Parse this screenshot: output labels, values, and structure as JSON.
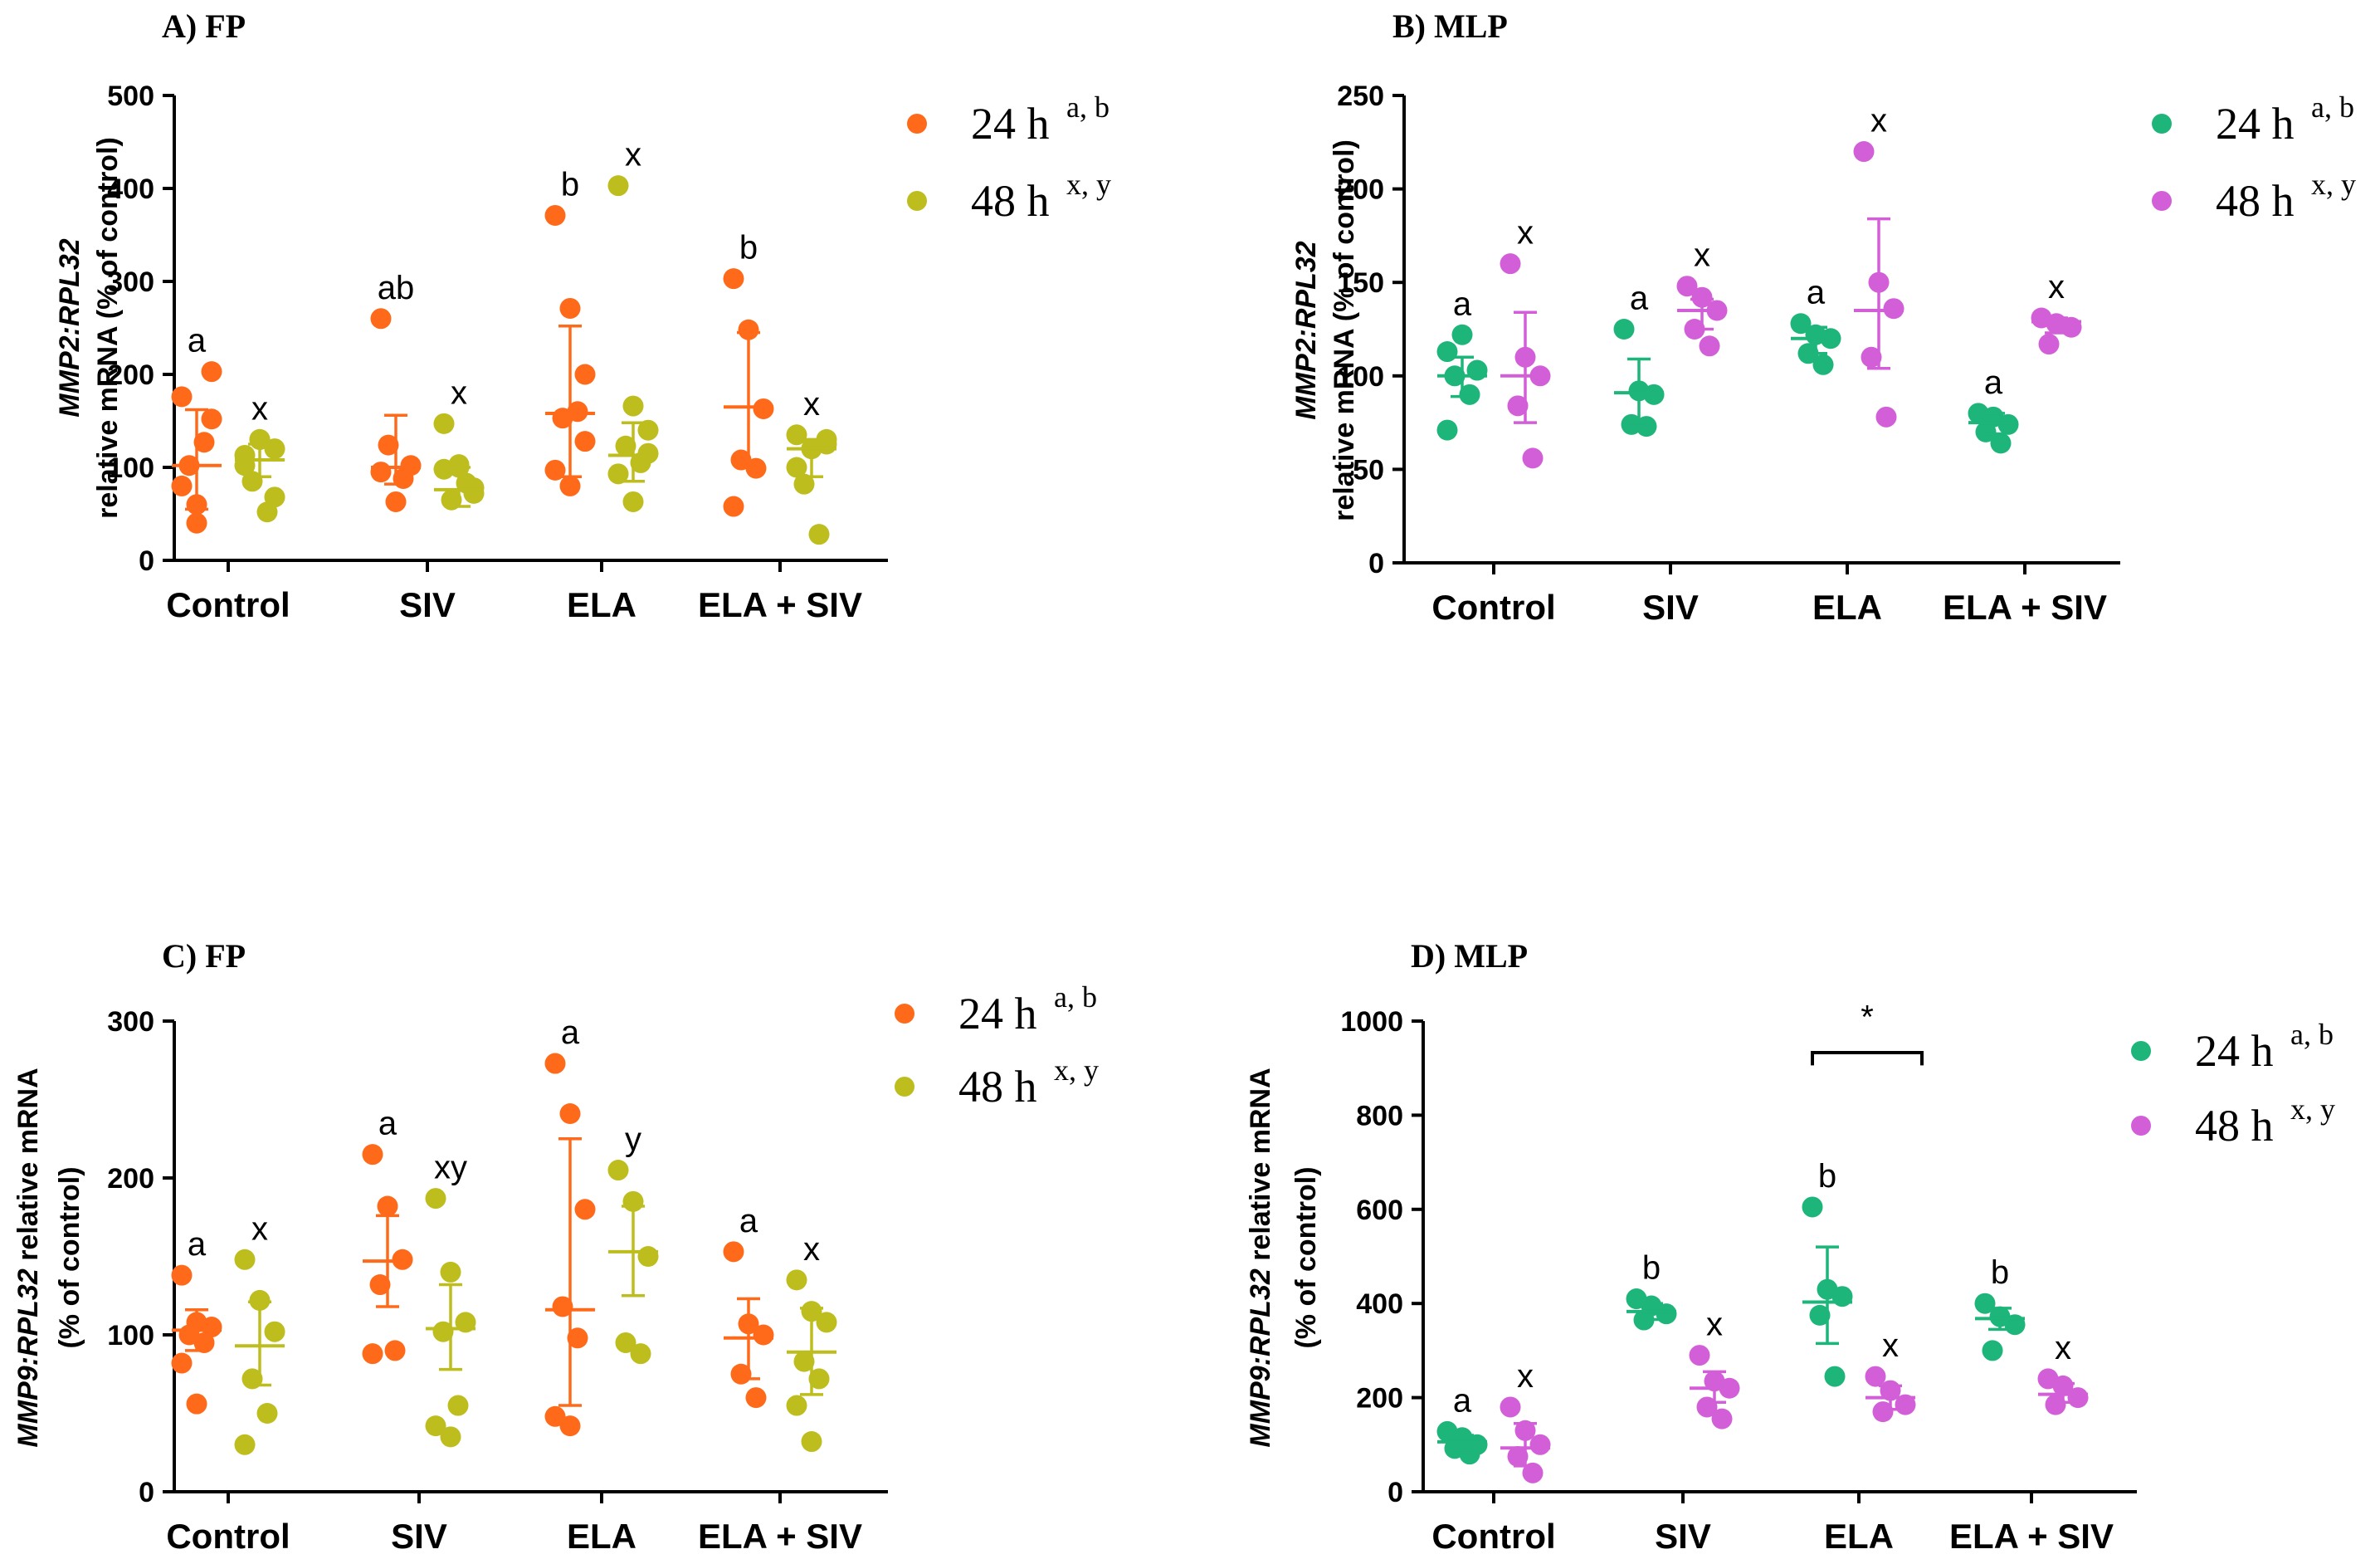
{
  "chart_data": [
    {
      "id": "A",
      "type": "scatter",
      "title": "A) FP",
      "ylabel_gene": "MMP2:RPL32",
      "ylabel_rest": "relative mRNA (% of control)",
      "ylim": [
        0,
        500
      ],
      "yticks": [
        "0",
        "100",
        "200",
        "300",
        "400",
        "500"
      ],
      "categories": [
        "Control",
        "SIV",
        "ELA",
        "ELA + SIV"
      ],
      "series": [
        {
          "name": "24 h",
          "sup": "a, b",
          "color": "#ff6a1a",
          "points": [
            [
              176,
              60,
              152,
              102,
              127,
              80,
              40,
              203
            ],
            [
              260,
              63,
              102,
              124,
              88,
              95
            ],
            [
              371,
              271,
              200,
              153,
              160,
              97,
              80,
              128
            ],
            [
              303,
              248,
              163,
              108,
              99,
              58
            ]
          ],
          "mean": [
            102,
            100,
            158,
            165
          ],
          "upper": [
            162,
            156,
            252,
            245
          ],
          "lower": [
            55,
            82,
            90,
            100
          ],
          "letters": [
            "a",
            "ab",
            "b",
            "b"
          ]
        },
        {
          "name": "48 h",
          "sup": "x, y",
          "color": "#bdbd1e",
          "points": [
            [
              102,
              130,
              120,
              85,
              52,
              113,
              130,
              68
            ],
            [
              147,
              103,
              72,
              65,
              83,
              98,
              100,
              78
            ],
            [
              403,
              166,
              140,
              123,
              105,
              93,
              63,
              115
            ],
            [
              135,
              120,
              125,
              82,
              28,
              100,
              120,
              130
            ]
          ],
          "mean": [
            108,
            76,
            113,
            120
          ],
          "upper": [
            125,
            100,
            148,
            130
          ],
          "lower": [
            90,
            58,
            85,
            90
          ],
          "letters": [
            "x",
            "x",
            "x",
            "x"
          ]
        }
      ]
    },
    {
      "id": "B",
      "type": "scatter",
      "title": "B) MLP",
      "ylabel_gene": "MMP2:RPL32",
      "ylabel_rest": "relative mRNA (% of control)",
      "ylim": [
        0,
        250
      ],
      "yticks": [
        "0",
        "50",
        "100",
        "150",
        "200",
        "250"
      ],
      "categories": [
        "Control",
        "SIV",
        "ELA",
        "ELA + SIV"
      ],
      "series": [
        {
          "name": "24 h",
          "sup": "a, b",
          "color": "#1db57a",
          "points": [
            [
              113,
              122,
              103,
              100,
              90,
              71
            ],
            [
              125,
              92,
              90,
              74,
              73
            ],
            [
              128,
              122,
              120,
              112,
              106
            ],
            [
              80,
              78,
              74,
              70,
              64
            ]
          ],
          "mean": [
            100,
            91,
            120,
            75
          ],
          "upper": [
            110,
            109,
            126,
            80
          ],
          "lower": [
            89,
            73,
            112,
            69
          ],
          "letters": [
            "a",
            "a",
            "a",
            "a"
          ]
        },
        {
          "name": "48 h",
          "sup": "x, y",
          "color": "#d35fd8",
          "points": [
            [
              160,
              110,
              100,
              84,
              56
            ],
            [
              148,
              142,
              135,
              125,
              116
            ],
            [
              220,
              150,
              136,
              110,
              78
            ],
            [
              131,
              128,
              126,
              117
            ]
          ],
          "mean": [
            100,
            135,
            135,
            129
          ],
          "upper": [
            134,
            141,
            184,
            131
          ],
          "lower": [
            75,
            125,
            104,
            123
          ],
          "letters": [
            "x",
            "x",
            "x",
            "x"
          ]
        }
      ]
    },
    {
      "id": "C",
      "type": "scatter",
      "title": "C) FP",
      "ylabel_gene": "MMP9:RPL32",
      "ylabel_gene_suffix": " relative mRNA",
      "ylabel_rest": "(% of control)",
      "ylim": [
        0,
        300
      ],
      "yticks": [
        "0",
        "100",
        "200",
        "300"
      ],
      "categories": [
        "Control",
        "SIV",
        "ELA",
        "ELA + SIV"
      ],
      "series": [
        {
          "name": "24 h",
          "sup": "a, b",
          "color": "#ff6a1a",
          "points": [
            [
              138,
              108,
              105,
              100,
              95,
              82,
              56
            ],
            [
              215,
              182,
              148,
              132,
              90,
              88
            ],
            [
              273,
              241,
              180,
              118,
              98,
              48,
              42
            ],
            [
              153,
              107,
              100,
              75,
              60
            ]
          ],
          "mean": [
            103,
            147,
            116,
            98
          ],
          "upper": [
            116,
            176,
            225,
            123
          ],
          "lower": [
            90,
            118,
            55,
            72
          ],
          "letters": [
            "a",
            "a",
            "a",
            "a"
          ]
        },
        {
          "name": "48 h",
          "sup": "x, y",
          "color": "#bdbd1e",
          "points": [
            [
              148,
              122,
              102,
              72,
              50,
              30
            ],
            [
              187,
              140,
              108,
              102,
              55,
              42,
              35
            ],
            [
              205,
              185,
              150,
              95,
              88
            ],
            [
              135,
              115,
              108,
              83,
              72,
              55,
              32
            ]
          ],
          "mean": [
            93,
            104,
            153,
            89
          ],
          "upper": [
            121,
            132,
            182,
            117
          ],
          "lower": [
            68,
            78,
            125,
            62
          ],
          "letters": [
            "x",
            "xy",
            "y",
            "x"
          ]
        }
      ]
    },
    {
      "id": "D",
      "type": "scatter",
      "title": "D) MLP",
      "ylabel_gene": "MMP9:RPL32",
      "ylabel_gene_suffix": " relative mRNA",
      "ylabel_rest": "(% of control)",
      "ylim": [
        0,
        1000
      ],
      "yticks": [
        "0",
        "200",
        "400",
        "600",
        "800",
        "1000"
      ],
      "categories": [
        "Control",
        "SIV",
        "ELA",
        "ELA + SIV"
      ],
      "significance": {
        "category": "ELA",
        "label": "*"
      },
      "series": [
        {
          "name": "24 h",
          "sup": "a, b",
          "color": "#1db57a",
          "points": [
            [
              128,
              115,
              100,
              92,
              80
            ],
            [
              410,
              395,
              378,
              365
            ],
            [
              605,
              430,
              415,
              375,
              245
            ],
            [
              400,
              372,
              355,
              300
            ]
          ],
          "mean": [
            106,
            383,
            403,
            368
          ],
          "upper": [
            120,
            400,
            520,
            390
          ],
          "lower": [
            88,
            366,
            315,
            345
          ],
          "letters": [
            "a",
            "b",
            "b",
            "b"
          ]
        },
        {
          "name": "48 h",
          "sup": "x, y",
          "color": "#d35fd8",
          "points": [
            [
              180,
              130,
              100,
              75,
              40
            ],
            [
              290,
              235,
              220,
              180,
              155
            ],
            [
              245,
              215,
              185,
              170
            ],
            [
              240,
              225,
              200,
              185
            ]
          ],
          "mean": [
            93,
            220,
            200,
            207
          ],
          "upper": [
            145,
            255,
            225,
            230
          ],
          "lower": [
            55,
            190,
            175,
            190
          ],
          "letters": [
            "x",
            "x",
            "x",
            "x"
          ]
        }
      ]
    }
  ]
}
